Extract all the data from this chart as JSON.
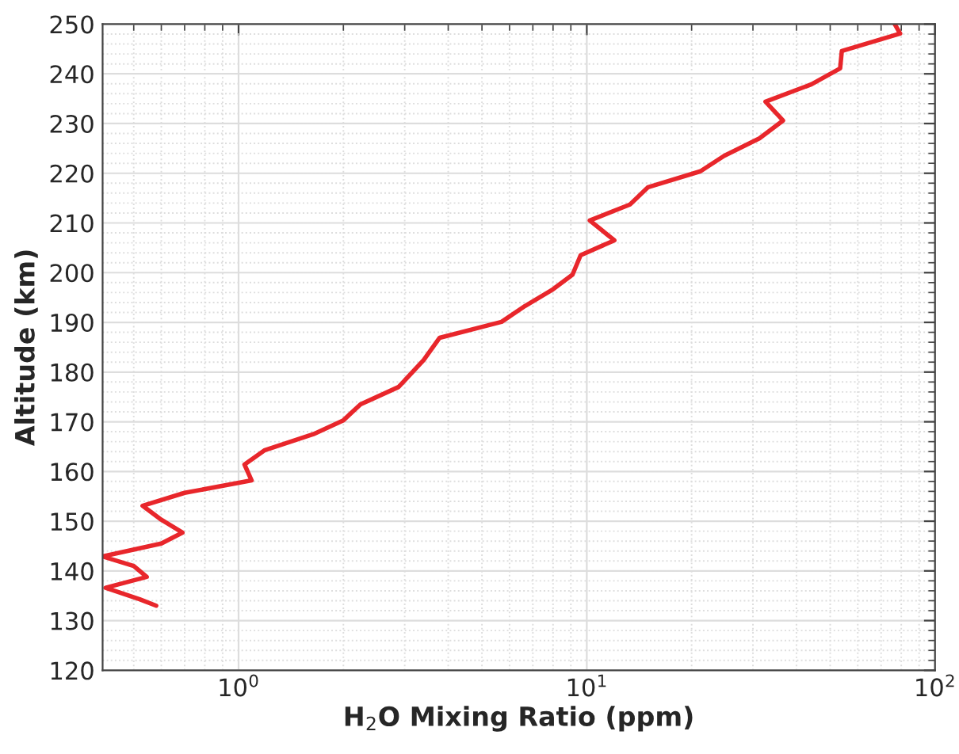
{
  "chart_data": {
    "type": "line",
    "xlabel": "H$_{2}$O Mixing Ratio (ppm)",
    "ylabel": "Altitude (km)",
    "log": "x",
    "xlim": [
      0.407,
      100
    ],
    "xticks": [
      {
        "value": 1,
        "label": "10$^{0}$"
      },
      {
        "value": 10,
        "label": "10$^{1}$"
      },
      {
        "value": 100,
        "label": "10$^{2}$"
      }
    ],
    "ylim": [
      120,
      250
    ],
    "yticks": [
      120,
      130,
      140,
      150,
      160,
      170,
      180,
      190,
      200,
      210,
      220,
      230,
      240,
      250
    ],
    "grid": true,
    "legend": false,
    "marker": "none",
    "line_style": "solid",
    "series": [
      {
        "color": "#e8262b",
        "x": [
          0.58,
          0.52,
          0.415,
          0.545,
          0.5,
          0.407,
          0.6,
          0.69,
          0.6,
          0.53,
          0.7,
          1.09,
          1.04,
          1.19,
          1.64,
          2.0,
          2.24,
          2.88,
          3.4,
          3.78,
          5.69,
          6.65,
          7.94,
          9.1,
          9.6,
          12.0,
          10.2,
          13.3,
          15.0,
          21.2,
          24.8,
          31.3,
          36.6,
          32.6,
          44.2,
          53.4,
          54.0,
          79.4,
          76.6
        ],
        "values": [
          133.0,
          134.3,
          136.6,
          138.8,
          141.0,
          142.9,
          145.5,
          147.7,
          150.3,
          153.1,
          155.7,
          158.2,
          161.4,
          164.3,
          167.5,
          170.3,
          173.5,
          177.0,
          182.4,
          186.9,
          190.1,
          193.3,
          196.5,
          199.6,
          203.5,
          206.5,
          210.5,
          213.7,
          217.2,
          220.4,
          223.5,
          227.0,
          230.6,
          234.4,
          237.9,
          241.1,
          244.6,
          248.1,
          250.0
        ]
      }
    ]
  }
}
